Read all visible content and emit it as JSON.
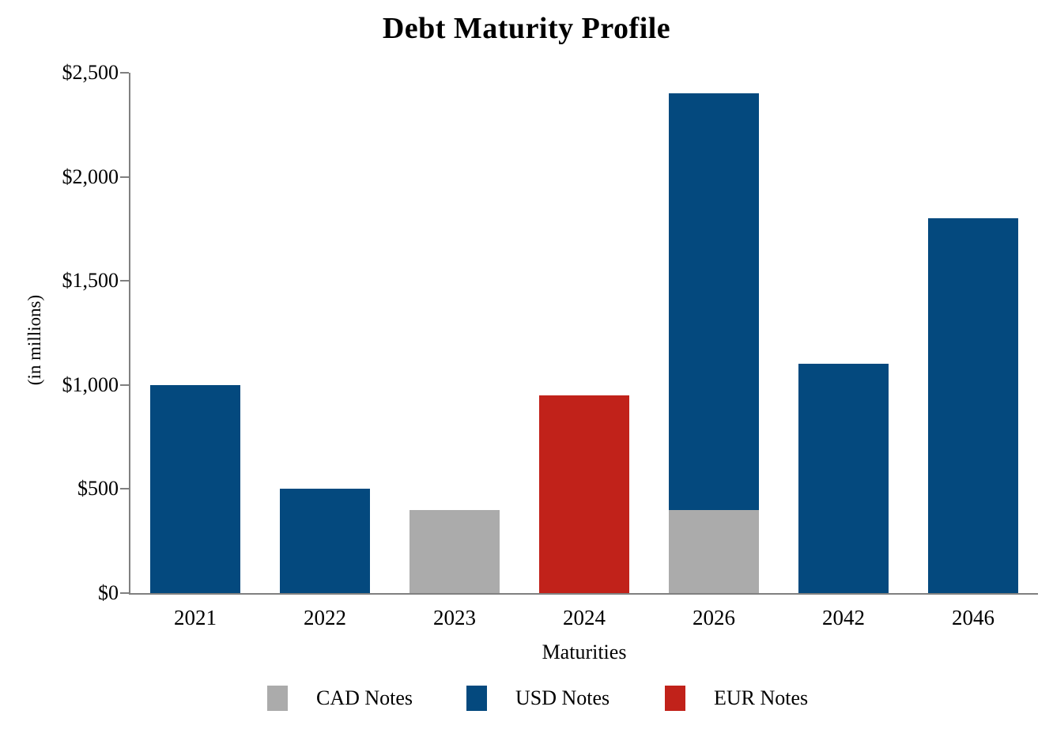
{
  "chart_data": {
    "type": "bar",
    "stacked": true,
    "title": "Debt Maturity Profile",
    "xlabel": "Maturities",
    "ylabel": "(in millions)",
    "categories": [
      "2021",
      "2022",
      "2023",
      "2024",
      "2026",
      "2042",
      "2046"
    ],
    "series": [
      {
        "name": "CAD Notes",
        "color": "#ababab",
        "values": [
          0,
          0,
          400,
          0,
          400,
          0,
          0
        ]
      },
      {
        "name": "USD Notes",
        "color": "#04497e",
        "values": [
          1000,
          500,
          0,
          0,
          2000,
          1100,
          1800
        ]
      },
      {
        "name": "EUR Notes",
        "color": "#c1221a",
        "values": [
          0,
          0,
          0,
          950,
          0,
          0,
          0
        ]
      }
    ],
    "totals_by_category": [
      1000,
      500,
      400,
      950,
      2400,
      1100,
      1800
    ],
    "ylim": [
      0,
      2500
    ],
    "ytick_interval": 500,
    "ytick_labels": [
      "$0",
      "$500",
      "$1,000",
      "$1,500",
      "$2,000",
      "$2,500"
    ],
    "axis_color": "#808080",
    "grid": false,
    "legend_position": "bottom"
  }
}
